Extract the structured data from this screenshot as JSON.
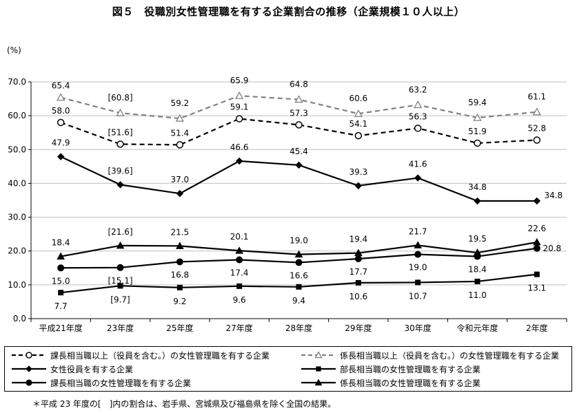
{
  "title": "図５　役職別女性管理職を有する企業割合の推移（企業規模１０人以上）",
  "y_unit": "(%)",
  "footnote": "＊平成 23 年度の[　]内の割合は、岩手県、宮城県及び福島県を除く全国の結果。",
  "chart_data": {
    "type": "line",
    "categories": [
      "平成21年度",
      "23年度",
      "25年度",
      "27年度",
      "28年度",
      "29年度",
      "30年度",
      "令和元年度",
      "2年度"
    ],
    "ylim": [
      0,
      70
    ],
    "yticks": [
      "0.0",
      "10.0",
      "20.0",
      "30.0",
      "40.0",
      "50.0",
      "60.0",
      "70.0"
    ],
    "grid": true,
    "legend_position": "bottom",
    "series": [
      {
        "name": "課長相当職以上（役員を含む。）の女性管理職を有する企業",
        "values": [
          58.0,
          51.6,
          51.4,
          59.1,
          57.3,
          54.1,
          56.3,
          51.9,
          52.8
        ],
        "labels": [
          "58.0",
          "[51.6]",
          "51.4",
          "59.1",
          "57.3",
          "54.1",
          "56.3",
          "51.9",
          "52.8"
        ],
        "style": "dashed",
        "color": "#000000",
        "marker": "circle-open"
      },
      {
        "name": "係長相当職以上（役員を含む。）の女性管理職を有する企業",
        "values": [
          65.4,
          60.8,
          59.2,
          65.9,
          64.8,
          60.6,
          63.2,
          59.4,
          61.1
        ],
        "labels": [
          "65.4",
          "[60.8]",
          "59.2",
          "65.9",
          "64.8",
          "60.6",
          "63.2",
          "59.4",
          "61.1"
        ],
        "style": "dashed",
        "color": "#808080",
        "marker": "triangle-open"
      },
      {
        "name": "女性役員を有する企業",
        "values": [
          47.9,
          39.6,
          37.0,
          46.6,
          45.4,
          39.3,
          41.6,
          34.8,
          34.8
        ],
        "labels": [
          "47.9",
          "[39.6]",
          "37.0",
          "46.6",
          "45.4",
          "39.3",
          "41.6",
          "34.8",
          "34.8"
        ],
        "style": "solid",
        "color": "#000000",
        "marker": "diamond"
      },
      {
        "name": "部長相当職の女性管理職を有する企業",
        "values": [
          7.7,
          9.7,
          9.2,
          9.6,
          9.4,
          10.6,
          10.7,
          11.0,
          13.1
        ],
        "labels": [
          "7.7",
          "[9.7]",
          "9.2",
          "9.6",
          "9.4",
          "10.6",
          "10.7",
          "11.0",
          "13.1"
        ],
        "style": "solid",
        "color": "#000000",
        "marker": "square"
      },
      {
        "name": "課長相当職の女性管理職を有する企業",
        "values": [
          15.0,
          15.1,
          16.8,
          17.4,
          16.6,
          17.7,
          19.0,
          18.4,
          20.8
        ],
        "labels": [
          "15.0",
          "[15.1]",
          "16.8",
          "17.4",
          "16.6",
          "17.7",
          "19.0",
          "18.4",
          "20.8"
        ],
        "style": "solid",
        "color": "#000000",
        "marker": "circle"
      },
      {
        "name": "係長相当職の女性管理職を有する企業",
        "values": [
          18.4,
          21.6,
          21.5,
          20.1,
          19.0,
          19.4,
          21.7,
          19.5,
          22.6
        ],
        "labels": [
          "18.4",
          "[21.6]",
          "21.5",
          "20.1",
          "19.0",
          "19.4",
          "21.7",
          "19.5",
          "22.6"
        ],
        "style": "solid",
        "color": "#000000",
        "marker": "triangle"
      }
    ]
  }
}
